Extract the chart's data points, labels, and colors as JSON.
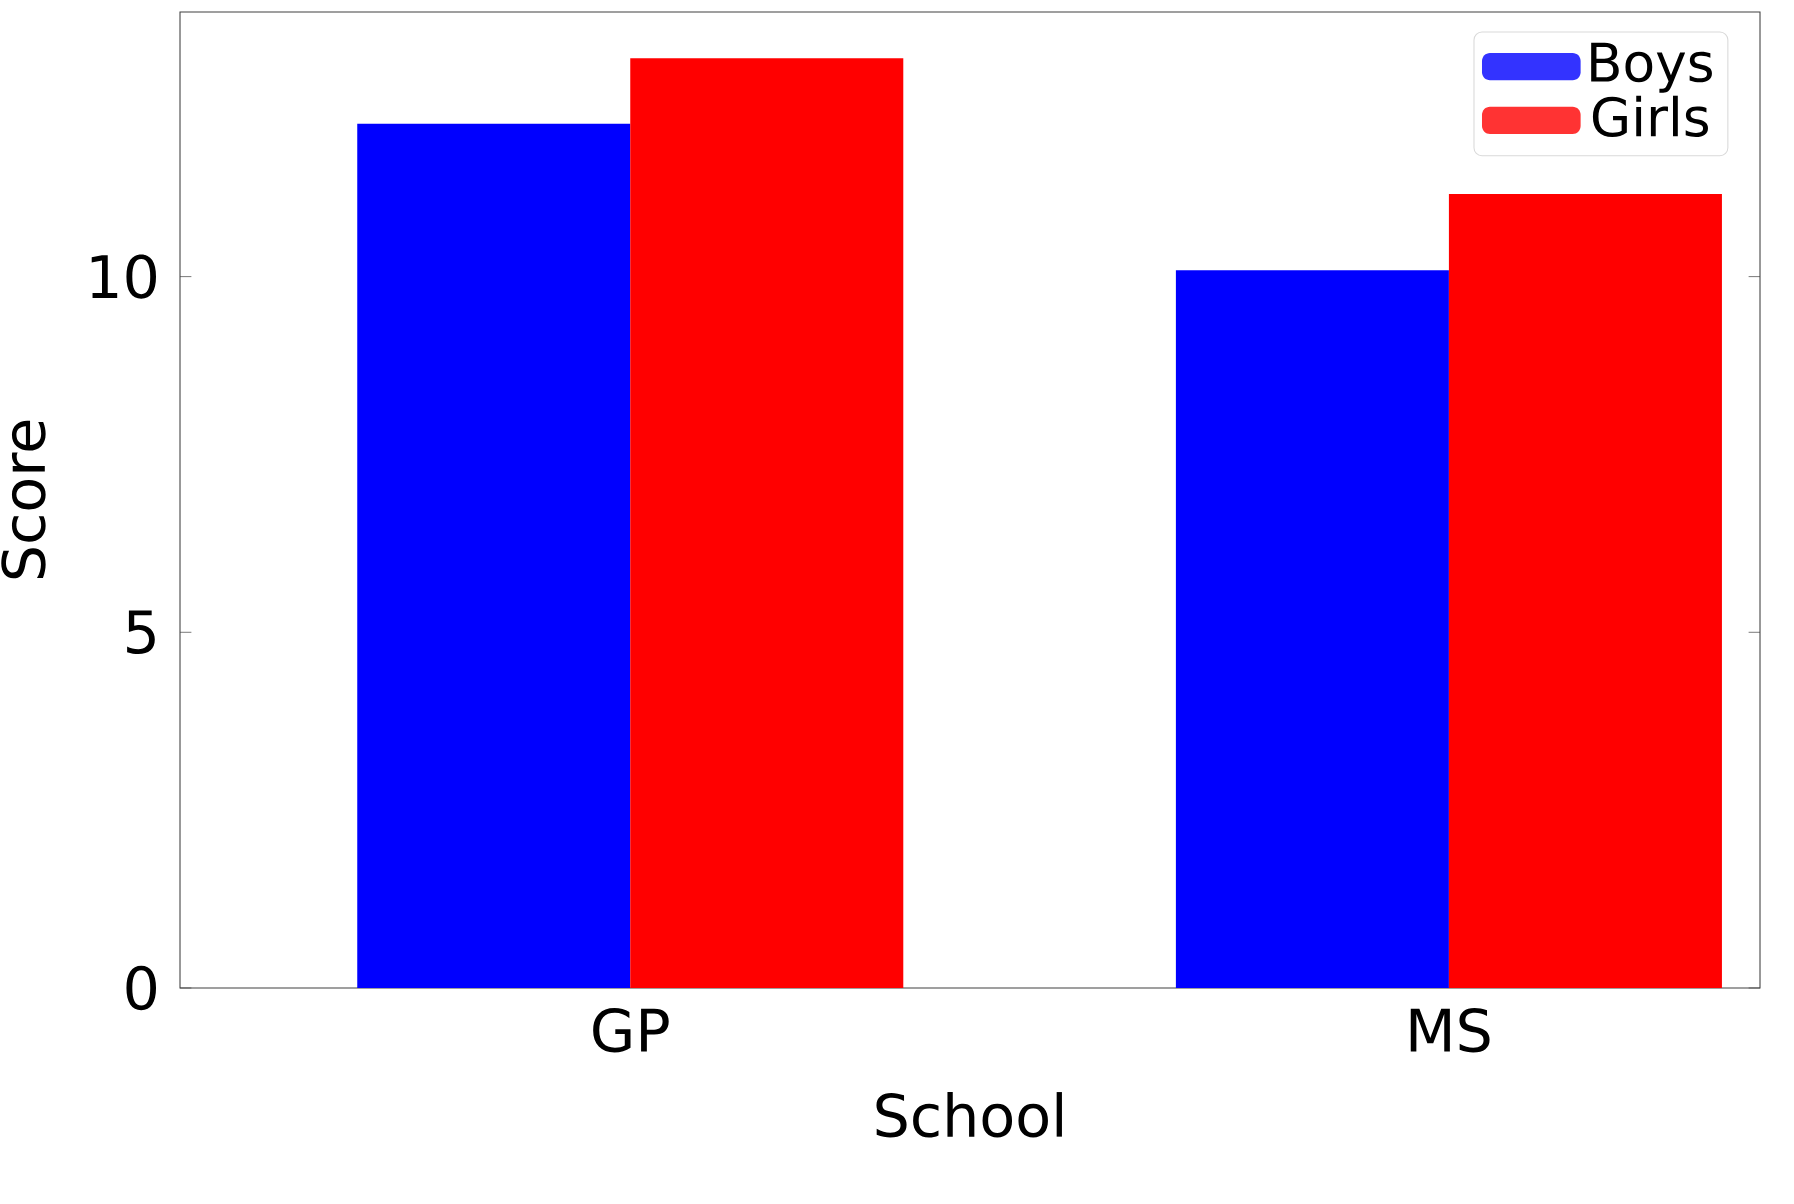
{
  "chart_data": {
    "type": "bar",
    "xlabel": "School",
    "ylabel": "Score",
    "categories": [
      "GP",
      "MS"
    ],
    "series": [
      {
        "name": "Boys",
        "color": "#0000ff",
        "values": [
          12.15,
          10.09
        ]
      },
      {
        "name": "Girls",
        "color": "#ff0000",
        "values": [
          13.07,
          11.16
        ]
      }
    ],
    "ylim": [
      0,
      13.72
    ],
    "yticks": [
      0,
      5,
      10
    ],
    "grid": false,
    "legend": "top right"
  }
}
